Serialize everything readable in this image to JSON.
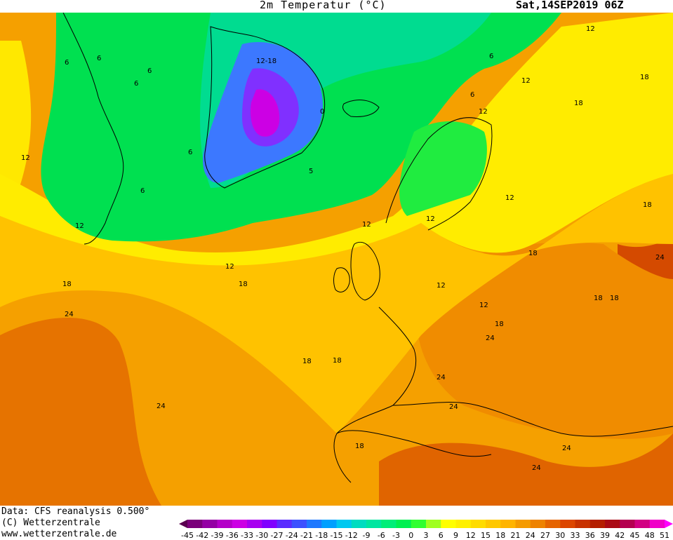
{
  "header": {
    "title": "2m Temperatur (°C)",
    "datetime": "Sat,14SEP2019 06Z"
  },
  "credits": {
    "data_source": "Data: CFS reanalysis 0.500°",
    "copyright": "(C) Wetterzentrale",
    "website": "www.wetterzentrale.de"
  },
  "legend": {
    "levels": [
      "-45",
      "-42",
      "-39",
      "-36",
      "-33",
      "-30",
      "-27",
      "-24",
      "-21",
      "-18",
      "-15",
      "-12",
      "-9",
      "-6",
      "-3",
      "0",
      "3",
      "6",
      "9",
      "12",
      "15",
      "18",
      "21",
      "24",
      "27",
      "30",
      "33",
      "36",
      "39",
      "42",
      "45",
      "48",
      "51"
    ],
    "colors": [
      "#5a0050",
      "#7a007a",
      "#9400a4",
      "#b400c8",
      "#cc00e4",
      "#a800f0",
      "#8000ff",
      "#5a2cff",
      "#3c50ff",
      "#1e78ff",
      "#00a0ff",
      "#00c8f0",
      "#00dcc0",
      "#00e6a0",
      "#00ee78",
      "#00f050",
      "#30ff30",
      "#a0ff20",
      "#ffff00",
      "#fff000",
      "#ffdc00",
      "#ffc800",
      "#ffb400",
      "#f59b00",
      "#ee8200",
      "#e66400",
      "#dc4600",
      "#c83200",
      "#b41e00",
      "#aa0a14",
      "#b40050",
      "#d20082",
      "#f000c8",
      "#ff00ff"
    ]
  },
  "map": {
    "region": "North Atlantic and Europe",
    "contour_labels": [
      "6",
      "6",
      "6",
      "6",
      "6",
      "12-18",
      "0",
      "6",
      "6",
      "5",
      "12",
      "12",
      "6",
      "12",
      "12",
      "12",
      "12",
      "12",
      "12",
      "12",
      "18",
      "18",
      "24",
      "18",
      "18",
      "18",
      "18",
      "18",
      "24",
      "24",
      "24",
      "18",
      "18",
      "24",
      "24",
      "24",
      "12",
      "18",
      "12",
      "18",
      "18",
      "24"
    ]
  }
}
